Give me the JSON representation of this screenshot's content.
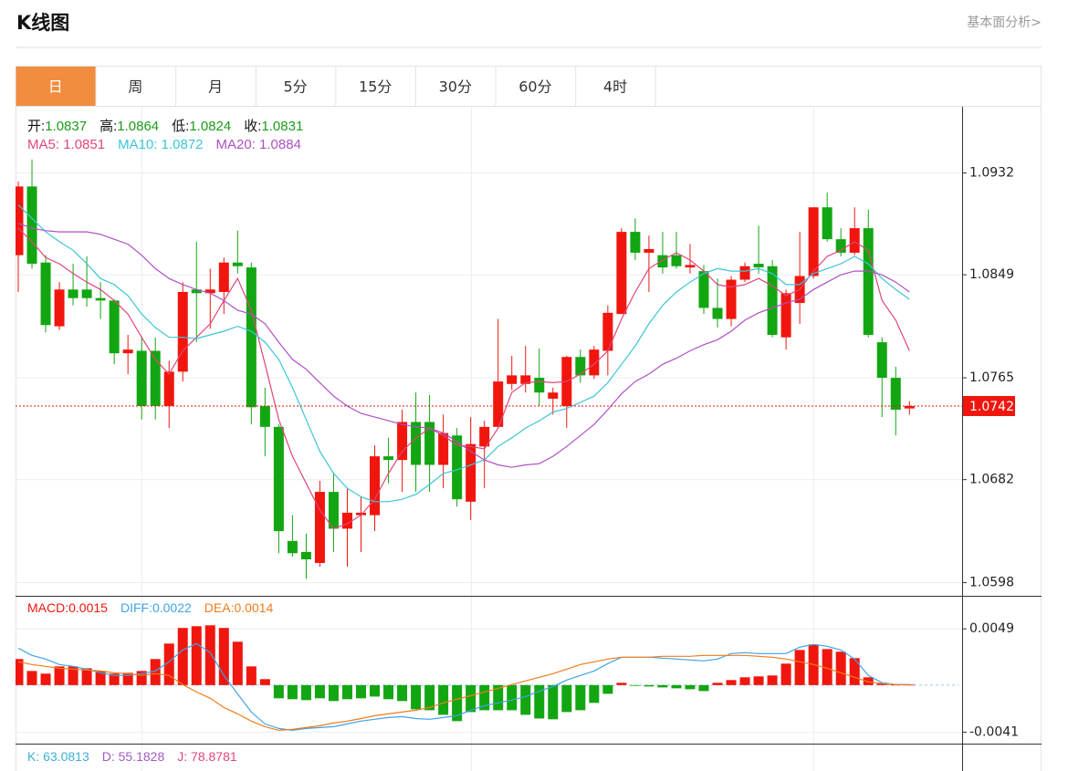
{
  "header": {
    "title": "K线图",
    "link": "基本面分析>"
  },
  "tabs": [
    "日",
    "周",
    "月",
    "5分",
    "15分",
    "30分",
    "60分",
    "4时"
  ],
  "kdj": [
    {
      "name": "K",
      "value": 63.0813,
      "color": "#3fb0d4"
    },
    {
      "name": "D",
      "value": 55.1828,
      "color": "#a05cc0"
    },
    {
      "name": "J",
      "value": 78.8781,
      "color": "#e0457b"
    }
  ],
  "chart_data": [
    {
      "type": "candlestick",
      "info": [
        {
          "label": "开",
          "value": 1.0837
        },
        {
          "label": "高",
          "value": 1.0864
        },
        {
          "label": "低",
          "value": 1.0824
        },
        {
          "label": "收",
          "value": 1.0831
        }
      ],
      "up_color": "#f0160e",
      "down_color": "#12a612",
      "open": [
        1.0865,
        1.0921,
        1.0859,
        1.0807,
        1.0837,
        1.0837,
        1.083,
        1.0828,
        1.0785,
        1.0787,
        1.0787,
        1.0742,
        1.077,
        1.0837,
        1.0834,
        1.0835,
        1.0859,
        1.0855,
        1.0742,
        1.0725,
        1.0632,
        1.0623,
        1.0614,
        1.0672,
        1.0642,
        1.0653,
        1.0653,
        1.0701,
        1.0698,
        1.0729,
        1.0729,
        1.0694,
        1.0718,
        1.0664,
        1.0709,
        1.0725,
        1.076,
        1.076,
        1.0765,
        1.0748,
        1.0742,
        1.0782,
        1.0767,
        1.0787,
        1.0817,
        1.0884,
        1.0867,
        1.0865,
        1.0865,
        1.0855,
        1.0852,
        1.0822,
        1.0813,
        1.0845,
        1.0858,
        1.0856,
        1.0798,
        1.0826,
        1.0848,
        1.0904,
        1.0878,
        1.0867,
        1.0887,
        1.0794,
        1.0765,
        1.074
      ],
      "high": [
        1.0925,
        1.0943,
        1.0865,
        1.0843,
        1.0858,
        1.0864,
        1.0843,
        1.0829,
        1.08,
        1.0798,
        1.0798,
        1.0779,
        1.0843,
        1.0876,
        1.0854,
        1.0863,
        1.0885,
        1.0859,
        1.0757,
        1.0727,
        1.0653,
        1.0638,
        1.0681,
        1.0688,
        1.0675,
        1.0668,
        1.071,
        1.0716,
        1.0739,
        1.0753,
        1.0751,
        1.0735,
        1.0724,
        1.0733,
        1.073,
        1.0813,
        1.0783,
        1.0791,
        1.0789,
        1.0757,
        1.0783,
        1.0788,
        1.0791,
        1.0824,
        1.0887,
        1.0895,
        1.0881,
        1.0884,
        1.0884,
        1.0874,
        1.0857,
        1.0846,
        1.0848,
        1.0859,
        1.0889,
        1.0861,
        1.0837,
        1.0884,
        1.0904,
        1.0916,
        1.0887,
        1.0904,
        1.0902,
        1.0798,
        1.0774,
        1.0746
      ],
      "low": [
        1.0835,
        1.0854,
        1.0802,
        1.0804,
        1.0824,
        1.0823,
        1.0813,
        1.0776,
        1.0768,
        1.0731,
        1.0731,
        1.0724,
        1.0762,
        1.0794,
        1.0805,
        1.0817,
        1.085,
        1.0727,
        1.0701,
        1.0622,
        1.0619,
        1.0601,
        1.0611,
        1.0623,
        1.0611,
        1.0623,
        1.064,
        1.0679,
        1.0672,
        1.0672,
        1.0672,
        1.0675,
        1.066,
        1.0649,
        1.0675,
        1.0724,
        1.0755,
        1.0753,
        1.0742,
        1.0735,
        1.0724,
        1.0761,
        1.0764,
        1.0767,
        1.0817,
        1.0861,
        1.0835,
        1.085,
        1.0854,
        1.085,
        1.0817,
        1.0806,
        1.0807,
        1.0843,
        1.085,
        1.0798,
        1.0788,
        1.0809,
        1.0846,
        1.0876,
        1.0864,
        1.0865,
        1.0798,
        1.0733,
        1.0718,
        1.0735
      ],
      "close": [
        1.0921,
        1.0858,
        1.0808,
        1.0837,
        1.083,
        1.083,
        1.0828,
        1.0785,
        1.0788,
        1.0742,
        1.0742,
        1.077,
        1.0835,
        1.0834,
        1.0837,
        1.0859,
        1.0856,
        1.0741,
        1.0725,
        1.064,
        1.0622,
        1.0617,
        1.0672,
        1.0642,
        1.0655,
        1.0655,
        1.0701,
        1.0698,
        1.0729,
        1.0694,
        1.0694,
        1.072,
        1.0666,
        1.0711,
        1.0725,
        1.0762,
        1.0767,
        1.0767,
        1.0753,
        1.0753,
        1.0782,
        1.0767,
        1.0788,
        1.0818,
        1.0884,
        1.0867,
        1.087,
        1.0855,
        1.0856,
        1.0857,
        1.0822,
        1.0813,
        1.0845,
        1.0856,
        1.0855,
        1.08,
        1.0834,
        1.0848,
        1.0904,
        1.0878,
        1.0867,
        1.0887,
        1.08,
        1.0765,
        1.0739,
        1.0742
      ],
      "series": [
        {
          "name": "MA5",
          "legend_value": 1.0851,
          "color": "#e0457b",
          "values": [
            1.0887,
            1.0876,
            1.0863,
            1.0858,
            1.085,
            1.0843,
            1.0837,
            1.0828,
            1.0817,
            1.0798,
            1.078,
            1.0768,
            1.0787,
            1.0798,
            1.0809,
            1.0828,
            1.0846,
            1.082,
            1.0776,
            1.0731,
            1.0701,
            1.0679,
            1.0657,
            1.0642,
            1.0646,
            1.0653,
            1.0666,
            1.0687,
            1.0705,
            1.0716,
            1.0724,
            1.0718,
            1.071,
            1.0709,
            1.0707,
            1.0724,
            1.0753,
            1.0761,
            1.0762,
            1.0761,
            1.0762,
            1.0768,
            1.0776,
            1.0787,
            1.0813,
            1.0835,
            1.0854,
            1.0861,
            1.0867,
            1.0861,
            1.0852,
            1.0841,
            1.0839,
            1.0841,
            1.0846,
            1.084,
            1.0832,
            1.0837,
            1.0852,
            1.0864,
            1.0869,
            1.0876,
            1.0869,
            1.0828,
            1.0812,
            1.0787
          ]
        },
        {
          "name": "MA10",
          "legend_value": 1.0872,
          "color": "#3cc5d6",
          "values": [
            1.0906,
            1.0895,
            1.0884,
            1.0876,
            1.0869,
            1.0858,
            1.0846,
            1.0841,
            1.0832,
            1.0817,
            1.0806,
            1.0798,
            1.0798,
            1.0797,
            1.08,
            1.0803,
            1.0807,
            1.0803,
            1.0794,
            1.078,
            1.0757,
            1.0731,
            1.0705,
            1.0687,
            1.0675,
            1.0668,
            1.0664,
            1.0664,
            1.0666,
            1.067,
            1.0678,
            1.0687,
            1.069,
            1.0694,
            1.0698,
            1.0709,
            1.0716,
            1.0724,
            1.073,
            1.0737,
            1.074,
            1.0745,
            1.075,
            1.0761,
            1.0776,
            1.0791,
            1.0809,
            1.0824,
            1.0835,
            1.0843,
            1.085,
            1.0854,
            1.0852,
            1.0852,
            1.0854,
            1.085,
            1.0841,
            1.0841,
            1.085,
            1.0854,
            1.0858,
            1.0864,
            1.0858,
            1.0846,
            1.0837,
            1.0829
          ]
        },
        {
          "name": "MA20",
          "legend_value": 1.0884,
          "color": "#b04fc5",
          "values": [
            1.0891,
            1.0887,
            1.0885,
            1.0884,
            1.0884,
            1.0884,
            1.0882,
            1.0878,
            1.0874,
            1.0865,
            1.0854,
            1.0846,
            1.0841,
            1.0837,
            1.0834,
            1.0828,
            1.082,
            1.0817,
            1.0809,
            1.0794,
            1.078,
            1.0772,
            1.0761,
            1.075,
            1.0742,
            1.0736,
            1.0733,
            1.073,
            1.0727,
            1.0725,
            1.0724,
            1.072,
            1.0713,
            1.0705,
            1.0698,
            1.0694,
            1.0692,
            1.0694,
            1.0695,
            1.0701,
            1.0709,
            1.0718,
            1.0727,
            1.0739,
            1.0752,
            1.0762,
            1.0768,
            1.0776,
            1.0781,
            1.0787,
            1.0792,
            1.0796,
            1.0803,
            1.0812,
            1.0818,
            1.0822,
            1.0826,
            1.0829,
            1.0837,
            1.0843,
            1.0849,
            1.0852,
            1.0852,
            1.0849,
            1.0843,
            1.0835
          ]
        }
      ],
      "last_price": 1.0742,
      "last_color": "#f0160e",
      "ylim": [
        1.0588,
        1.0986
      ],
      "yticks": [
        1.0932,
        1.0849,
        1.0765,
        1.0682,
        1.0598
      ],
      "grid": true
    },
    {
      "type": "macd",
      "histogram": {
        "name": "MACD",
        "legend_value": 0.0015,
        "up_color": "#f0160e",
        "down_color": "#12a612",
        "values": [
          0.00227,
          0.00123,
          0.001,
          0.00163,
          0.00163,
          0.00147,
          0.00123,
          0.001,
          0.00107,
          0.00123,
          0.00227,
          0.00362,
          0.00498,
          0.00513,
          0.00521,
          0.00498,
          0.00378,
          0.00163,
          0.00052,
          -0.00115,
          -0.00123,
          -0.00131,
          -0.00115,
          -0.00139,
          -0.00123,
          -0.00115,
          -0.001,
          -0.00123,
          -0.00139,
          -0.00211,
          -0.00219,
          -0.00259,
          -0.00314,
          -0.00235,
          -0.00219,
          -0.00219,
          -0.00219,
          -0.00259,
          -0.00291,
          -0.00298,
          -0.00235,
          -0.00219,
          -0.00155,
          -0.00076,
          0.0002,
          -4e-05,
          -0.00012,
          -0.0002,
          -0.00028,
          -0.00036,
          -0.00052,
          0.0002,
          0.00044,
          0.00068,
          0.00076,
          0.00084,
          0.00187,
          0.00306,
          0.00354,
          0.00314,
          0.00291,
          0.00235,
          0.00068,
          0.0002,
          4e-05,
          4e-05
        ]
      },
      "series": [
        {
          "name": "DIFF",
          "legend_value": 0.0022,
          "color": "#3fa3e8",
          "values": [
            0.00322,
            0.00259,
            0.00227,
            0.00179,
            0.00163,
            0.00139,
            0.00107,
            0.00084,
            0.00084,
            0.001,
            0.00123,
            0.00203,
            0.00306,
            0.00362,
            0.00283,
            0.00084,
            -0.00076,
            -0.00235,
            -0.00338,
            -0.00378,
            -0.00394,
            -0.00378,
            -0.0037,
            -0.00362,
            -0.00338,
            -0.00314,
            -0.00298,
            -0.00283,
            -0.00275,
            -0.00291,
            -0.00298,
            -0.00283,
            -0.00267,
            -0.00219,
            -0.00179,
            -0.00155,
            -0.00131,
            -0.001,
            -0.00052,
            -0.00012,
            0.00044,
            0.00084,
            0.00123,
            0.00187,
            0.00243,
            0.00243,
            0.00243,
            0.00235,
            0.00227,
            0.00219,
            0.00211,
            0.00227,
            0.00275,
            0.00283,
            0.00275,
            0.00275,
            0.00275,
            0.0033,
            0.00354,
            0.00338,
            0.00306,
            0.00227,
            0.00084,
            0.0002,
            4e-05,
            4e-05
          ]
        },
        {
          "name": "DEA",
          "legend_value": 0.0014,
          "color": "#f07c1c",
          "values": [
            0.00203,
            0.00179,
            0.00163,
            0.00147,
            0.00139,
            0.00131,
            0.00123,
            0.00107,
            0.001,
            0.00084,
            0.001,
            0.00084,
            4e-05,
            -0.0006,
            -0.00115,
            -0.00195,
            -0.00251,
            -0.00314,
            -0.00362,
            -0.00394,
            -0.00386,
            -0.0037,
            -0.00354,
            -0.0033,
            -0.00314,
            -0.00291,
            -0.00267,
            -0.00251,
            -0.00235,
            -0.00219,
            -0.00195,
            -0.00155,
            -0.00123,
            -0.00092,
            -0.0006,
            -0.00028,
            4e-05,
            0.00036,
            0.00068,
            0.001,
            0.00139,
            0.00179,
            0.00203,
            0.00227,
            0.00243,
            0.00243,
            0.00243,
            0.00251,
            0.00251,
            0.00251,
            0.00259,
            0.00259,
            0.00259,
            0.00259,
            0.00251,
            0.00243,
            0.00227,
            0.00203,
            0.00179,
            0.00147,
            0.00107,
            0.00068,
            0.00028,
            0.00012,
            4e-05,
            4e-05
          ]
        }
      ],
      "ylim": [
        -0.0051,
        0.0077
      ],
      "yticks": [
        0.0049,
        -0.0041
      ],
      "grid": true
    }
  ]
}
